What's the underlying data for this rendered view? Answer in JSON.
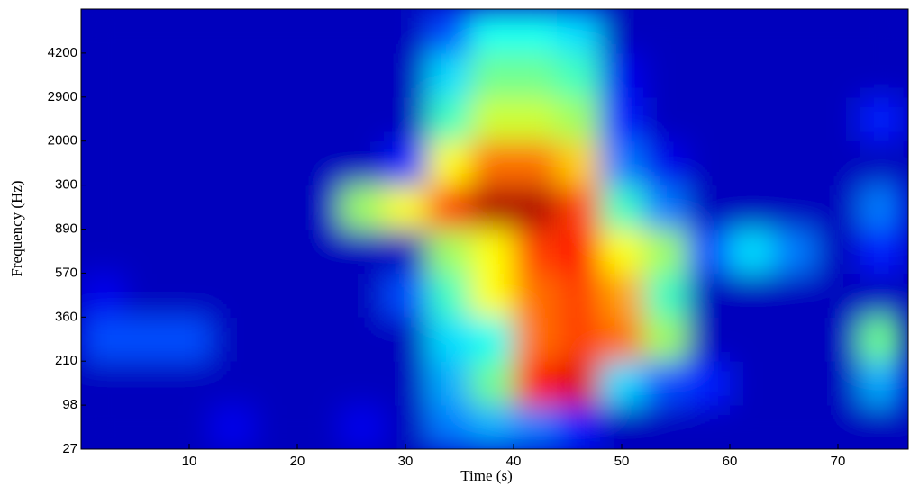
{
  "chart_data": {
    "type": "heatmap",
    "xlabel": "Time  (s)",
    "ylabel": "Frequency (Hz)",
    "xlim": [
      0,
      76.5
    ],
    "xticks": [
      10,
      20,
      30,
      40,
      50,
      60,
      70
    ],
    "ylim": [
      0,
      10
    ],
    "yticks": [
      {
        "value": 0,
        "label": "27"
      },
      {
        "value": 1,
        "label": "98"
      },
      {
        "value": 2,
        "label": "210"
      },
      {
        "value": 3,
        "label": "360"
      },
      {
        "value": 4,
        "label": "570"
      },
      {
        "value": 5,
        "label": "890"
      },
      {
        "value": 6,
        "label": "300"
      },
      {
        "value": 7,
        "label": "2000"
      },
      {
        "value": 8,
        "label": "2900"
      },
      {
        "value": 9,
        "label": "4200"
      }
    ],
    "x": [
      2,
      6,
      10,
      14,
      18,
      22,
      26,
      30,
      34,
      38,
      42,
      46,
      50,
      54,
      58,
      62,
      66,
      70,
      74
    ],
    "y": [
      0.5,
      1.5,
      2.5,
      3.5,
      4.5,
      5.5,
      6.5,
      7.5,
      8.5,
      9.5
    ],
    "colormap": "jet",
    "values": [
      [
        0,
        0,
        0,
        0.05,
        0,
        0,
        0.05,
        0,
        0.2,
        0.25,
        0.2,
        0.1,
        0,
        0,
        0,
        0,
        0,
        0,
        0
      ],
      [
        0,
        0,
        0,
        0,
        0,
        0,
        0,
        0,
        0.25,
        0.45,
        0.85,
        0.9,
        0.3,
        0.15,
        0.1,
        0,
        0,
        0,
        0.25
      ],
      [
        0.15,
        0.15,
        0.15,
        0,
        0,
        0,
        0,
        0,
        0.3,
        0.35,
        0.75,
        0.8,
        0.75,
        0.5,
        0,
        0,
        0,
        0,
        0.45
      ],
      [
        0.05,
        0,
        0,
        0,
        0,
        0,
        0,
        0.15,
        0.4,
        0.6,
        0.75,
        0.8,
        0.7,
        0.4,
        0,
        0,
        0,
        0,
        0
      ],
      [
        0,
        0,
        0,
        0,
        0,
        0,
        0,
        0,
        0.5,
        0.6,
        0.8,
        0.85,
        0.6,
        0.5,
        0.15,
        0.3,
        0.2,
        0,
        0.1
      ],
      [
        0,
        0,
        0,
        0,
        0,
        0,
        0.5,
        0.6,
        0.8,
        0.95,
        0.95,
        0.8,
        0.4,
        0.2,
        0,
        0,
        0,
        0,
        0.2
      ],
      [
        0,
        0,
        0,
        0,
        0,
        0,
        0,
        0.1,
        0.6,
        0.75,
        0.75,
        0.65,
        0.2,
        0.05,
        0,
        0,
        0,
        0,
        0
      ],
      [
        0,
        0,
        0,
        0,
        0,
        0,
        0,
        0,
        0.4,
        0.55,
        0.55,
        0.5,
        0.1,
        0,
        0,
        0,
        0,
        0,
        0.1
      ],
      [
        0,
        0,
        0,
        0,
        0,
        0,
        0,
        0,
        0.3,
        0.45,
        0.45,
        0.4,
        0.05,
        0,
        0,
        0,
        0,
        0,
        0
      ],
      [
        0,
        0,
        0,
        0,
        0,
        0,
        0,
        0,
        0.15,
        0.35,
        0.35,
        0.3,
        0,
        0,
        0,
        0,
        0,
        0,
        0
      ]
    ]
  }
}
